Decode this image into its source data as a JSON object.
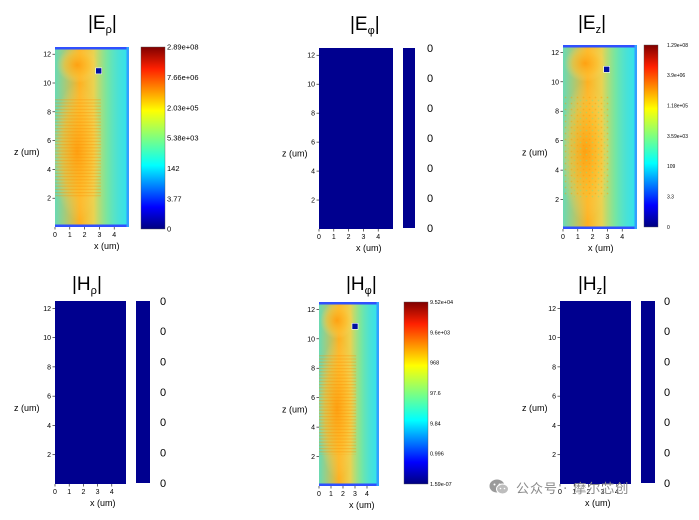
{
  "chart_data": [
    {
      "type": "heatmap",
      "title": "|Eρ|",
      "title_base": "E",
      "title_sub": "ρ",
      "xlabel": "x (um)",
      "ylabel": "z (um)",
      "xticks": [
        0,
        1,
        2,
        3,
        4
      ],
      "yticks": [
        2,
        4,
        6,
        8,
        10,
        12
      ],
      "xlim": [
        0,
        5
      ],
      "ylim": [
        0,
        12.5
      ],
      "field": "field",
      "colorbar_labels": [
        "2.89e+08",
        "7.66e+06",
        "2.03e+05",
        "5.38e+03",
        "142",
        "3.77",
        "0"
      ]
    },
    {
      "type": "heatmap",
      "title": "|Eφ|",
      "title_base": "E",
      "title_sub": "φ",
      "xlabel": "x (um)",
      "ylabel": "z (um)",
      "xticks": [
        0,
        1,
        2,
        3,
        4
      ],
      "yticks": [
        2,
        4,
        6,
        8,
        10,
        12
      ],
      "xlim": [
        0,
        5
      ],
      "ylim": [
        0,
        12.5
      ],
      "field": "zero",
      "colorbar_labels": [
        "0",
        "0",
        "0",
        "0",
        "0",
        "0",
        "0"
      ]
    },
    {
      "type": "heatmap",
      "title": "|Ez|",
      "title_base": "E",
      "title_sub": "z",
      "xlabel": "x (um)",
      "ylabel": "z (um)",
      "xticks": [
        0,
        1,
        2,
        3,
        4
      ],
      "yticks": [
        2,
        4,
        6,
        8,
        10,
        12
      ],
      "xlim": [
        0,
        5
      ],
      "ylim": [
        0,
        12.5
      ],
      "field": "field",
      "colorbar_labels": [
        "1.29e+08",
        "3.9e+06",
        "1.18e+05",
        "3.59e+03",
        "109",
        "3.3",
        "0"
      ]
    },
    {
      "type": "heatmap",
      "title": "|Hρ|",
      "title_base": "H",
      "title_sub": "ρ",
      "xlabel": "x (um)",
      "ylabel": "z (um)",
      "xticks": [
        0,
        1,
        2,
        3,
        4
      ],
      "yticks": [
        2,
        4,
        6,
        8,
        10,
        12
      ],
      "xlim": [
        0,
        5
      ],
      "ylim": [
        0,
        12.5
      ],
      "field": "zero",
      "colorbar_labels": [
        "0",
        "0",
        "0",
        "0",
        "0",
        "0",
        "0"
      ]
    },
    {
      "type": "heatmap",
      "title": "|Hφ|",
      "title_base": "H",
      "title_sub": "φ",
      "xlabel": "x (um)",
      "ylabel": "z (um)",
      "xticks": [
        0,
        1,
        2,
        3,
        4
      ],
      "yticks": [
        2,
        4,
        6,
        8,
        10,
        12
      ],
      "xlim": [
        0,
        5
      ],
      "ylim": [
        0,
        12.5
      ],
      "field": "field",
      "colorbar_labels": [
        "9.52e+04",
        "9.6e+03",
        "968",
        "97.6",
        "9.84",
        "0.996",
        "1.59e-07"
      ]
    },
    {
      "type": "heatmap",
      "title": "|Hz|",
      "title_base": "H",
      "title_sub": "z",
      "xlabel": "x (um)",
      "ylabel": "z (um)",
      "xticks": [
        0,
        1,
        2,
        3,
        4
      ],
      "yticks": [
        2,
        4,
        6,
        8,
        10,
        12
      ],
      "xlim": [
        0,
        5
      ],
      "ylim": [
        0,
        12.5
      ],
      "field": "zero",
      "colorbar_labels": [
        "0",
        "0",
        "0",
        "0",
        "0",
        "0",
        "0"
      ]
    }
  ],
  "watermark": {
    "text": "公众号 · 摩尔芯创",
    "icon": "wechat-icon"
  },
  "colors": {
    "background": "#ffffff",
    "zero_field": "#00008f"
  }
}
